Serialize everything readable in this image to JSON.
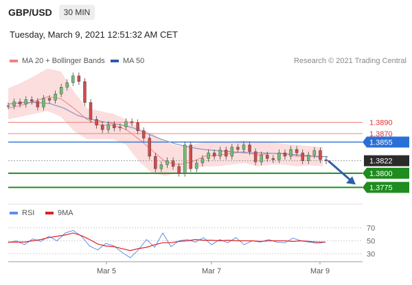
{
  "header": {
    "symbol": "GBP/USD",
    "timeframe": "30 MIN",
    "timestamp": "Tuesday, March 9, 2021 12:51:32 AM CET"
  },
  "legend": {
    "items": [
      {
        "label": "MA 20 + Bollinger Bands",
        "color": "#f08080"
      },
      {
        "label": "MA 50",
        "color": "#2a5caa"
      }
    ],
    "copyright": "Research © 2021 Trading Central"
  },
  "rsi_legend": {
    "items": [
      {
        "label": "RSI",
        "color": "#5b8def"
      },
      {
        "label": "9MA",
        "color": "#e02020"
      }
    ]
  },
  "chart_data": [
    {
      "type": "line",
      "panel": "price",
      "ylim": [
        1.3755,
        1.3985
      ],
      "x_ticks": [
        "Mar 5",
        "Mar 7",
        "Mar 9"
      ],
      "levels": [
        {
          "value": 1.389,
          "label": "1.3890",
          "style": "resistance-red"
        },
        {
          "value": 1.387,
          "label": "1.3870",
          "style": "resistance-red"
        },
        {
          "value": 1.3855,
          "label": "1.3855",
          "style": "ma-blue"
        },
        {
          "value": 1.3822,
          "label": "1.3822",
          "style": "current-price"
        },
        {
          "value": 1.38,
          "label": "1.3800",
          "style": "support-green"
        },
        {
          "value": 1.3775,
          "label": "1.3775",
          "style": "support-green"
        }
      ],
      "close_path": [
        1.3919,
        1.3926,
        1.3922,
        1.393,
        1.3927,
        1.3917,
        1.3932,
        1.3929,
        1.394,
        1.3952,
        1.396,
        1.3972,
        1.3962,
        1.3925,
        1.3895,
        1.3885,
        1.3877,
        1.3886,
        1.388,
        1.3882,
        1.3891,
        1.3889,
        1.3875,
        1.3862,
        1.383,
        1.3808,
        1.3815,
        1.3822,
        1.3812,
        1.38,
        1.385,
        1.3808,
        1.3818,
        1.3826,
        1.3836,
        1.383,
        1.3841,
        1.383,
        1.3846,
        1.3842,
        1.385,
        1.3838,
        1.382,
        1.3832,
        1.3826,
        1.3824,
        1.3836,
        1.383,
        1.3842,
        1.3836,
        1.3822,
        1.3832,
        1.384,
        1.3824,
        1.3822
      ],
      "projection": {
        "from": 1.3822,
        "to": 1.378
      },
      "ma20_band": {
        "ma": [
          1.3915,
          1.392,
          1.3927,
          1.3935,
          1.3932,
          1.3915,
          1.3895,
          1.3885,
          1.3885,
          1.3877,
          1.386,
          1.384,
          1.382,
          1.3815,
          1.382,
          1.383,
          1.3832,
          1.3835,
          1.3838,
          1.3832,
          1.3835,
          1.3835,
          1.383,
          1.383,
          1.3828
        ],
        "upper": [
          1.395,
          1.396,
          1.3972,
          1.3985,
          1.398,
          1.3945,
          1.3915,
          1.391,
          1.3905,
          1.3895,
          1.388,
          1.387,
          1.3855,
          1.3848,
          1.385,
          1.3855,
          1.3855,
          1.3855,
          1.3858,
          1.3855,
          1.3855,
          1.3852,
          1.385,
          1.3848,
          1.3846
        ],
        "lower": [
          1.3895,
          1.39,
          1.3905,
          1.391,
          1.39,
          1.3875,
          1.386,
          1.386,
          1.386,
          1.385,
          1.382,
          1.38,
          1.3795,
          1.3802,
          1.3808,
          1.3812,
          1.3812,
          1.3815,
          1.3818,
          1.3812,
          1.3815,
          1.3815,
          1.3812,
          1.3814,
          1.3812
        ]
      },
      "ma50": [
        1.3922,
        1.3925,
        1.3925,
        1.3923,
        1.3915,
        1.3902,
        1.3895,
        1.389,
        1.3886,
        1.388,
        1.387,
        1.386,
        1.3852,
        1.3846,
        1.3842,
        1.384,
        1.3838,
        1.3836,
        1.3836,
        1.3835,
        1.3834,
        1.3832,
        1.383,
        1.3829
      ]
    },
    {
      "type": "line",
      "panel": "rsi",
      "ylim": [
        22,
        78
      ],
      "y_ticks": [
        70,
        50,
        30
      ],
      "series": [
        {
          "name": "RSI",
          "values": [
            47,
            50,
            44,
            53,
            49,
            57,
            50,
            62,
            66,
            57,
            42,
            36,
            46,
            42,
            32,
            24,
            36,
            52,
            40,
            62,
            41,
            50,
            52,
            48,
            55,
            44,
            52,
            47,
            55,
            44,
            50,
            48,
            52,
            48,
            47,
            54,
            50,
            48,
            46,
            48
          ]
        },
        {
          "name": "9MA",
          "values": [
            48,
            48,
            48,
            50,
            52,
            55,
            57,
            59,
            62,
            58,
            52,
            45,
            42,
            41,
            38,
            35,
            38,
            40,
            44,
            47,
            47,
            49,
            50,
            52,
            51,
            51,
            50,
            51,
            50,
            50,
            50,
            49,
            50,
            50,
            50,
            49,
            50,
            49,
            48,
            48
          ]
        }
      ]
    }
  ]
}
